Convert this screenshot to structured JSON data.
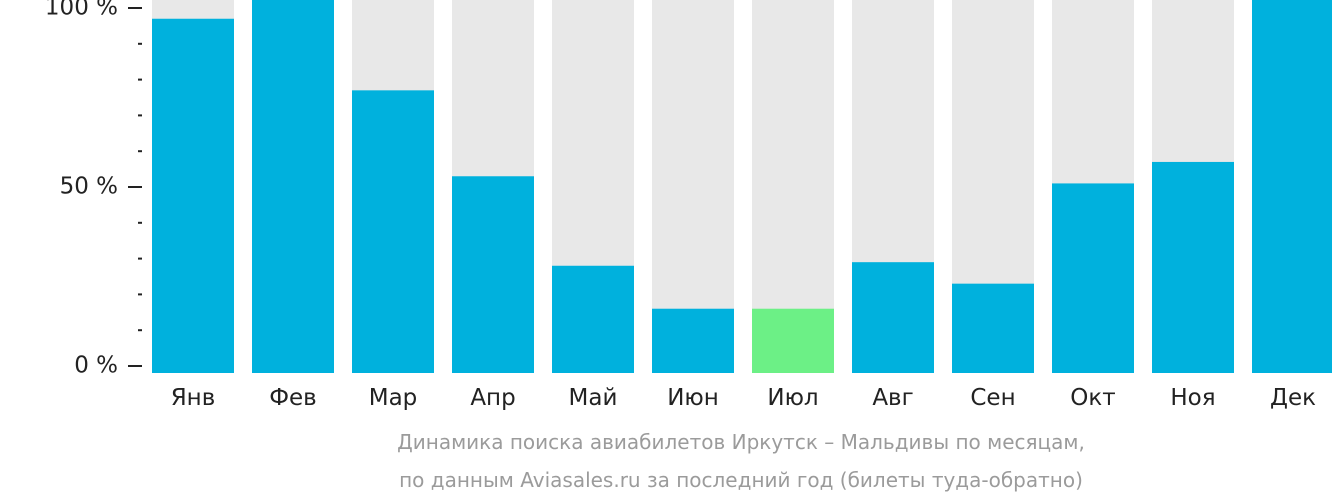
{
  "chart_data": {
    "type": "bar",
    "categories": [
      "Янв",
      "Фев",
      "Мар",
      "Апр",
      "Май",
      "Июн",
      "Июл",
      "Авг",
      "Сен",
      "Окт",
      "Ноя",
      "Дек"
    ],
    "values": [
      97,
      100,
      77,
      53,
      28,
      16,
      16,
      29,
      23,
      51,
      57,
      100
    ],
    "ylim": [
      0,
      100
    ],
    "y_ticks": [
      {
        "value": 0,
        "label": "0 %"
      },
      {
        "value": 50,
        "label": "50 %"
      },
      {
        "value": 100,
        "label": "100 %"
      }
    ],
    "y_minor_tick_step": 10,
    "highlight_category": "Июл",
    "colors": {
      "bar": "#00b1dd",
      "highlight_bar": "#6cf086",
      "track": "#e8e8e8",
      "axis": "#222222"
    },
    "legend": "none",
    "grid": false
  },
  "caption": {
    "line1": "Динамика поиска авиабилетов Иркутск – Мальдивы по месяцам,",
    "line2": "по данным Aviasales.ru за последний год (билеты туда-обратно)"
  }
}
